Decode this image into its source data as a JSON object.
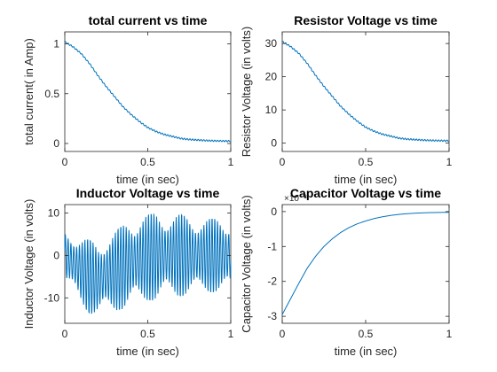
{
  "chart_data": [
    {
      "type": "line",
      "title": "total current vs time",
      "xlabel": "time (in sec)",
      "ylabel": "total current( in Amp)",
      "xlim": [
        0,
        1
      ],
      "ylim": [
        -0.08,
        1.12
      ],
      "xticks": [
        0,
        0.5,
        1
      ],
      "xtick_labels": [
        "0",
        "0.5",
        "1"
      ],
      "yticks": [
        0,
        0.5,
        1
      ],
      "ytick_labels": [
        "0",
        "0.5",
        "1"
      ],
      "grid": false,
      "color": "#0072bd",
      "series": [
        {
          "x": [
            0,
            0.05,
            0.1,
            0.15,
            0.2,
            0.25,
            0.3,
            0.35,
            0.4,
            0.45,
            0.5,
            0.55,
            0.6,
            0.65,
            0.7,
            0.75,
            0.8,
            0.85,
            0.9,
            0.95,
            1
          ],
          "y": [
            1.02,
            0.97,
            0.9,
            0.8,
            0.68,
            0.57,
            0.47,
            0.37,
            0.29,
            0.22,
            0.16,
            0.12,
            0.09,
            0.07,
            0.05,
            0.04,
            0.035,
            0.03,
            0.027,
            0.025,
            0.024
          ]
        }
      ]
    },
    {
      "type": "line",
      "title": "Resistor Voltage vs time",
      "xlabel": "time (in sec)",
      "ylabel": "Resistor Voltage (in volts)",
      "xlim": [
        0,
        1
      ],
      "ylim": [
        -2.5,
        33.5
      ],
      "xticks": [
        0,
        0.5,
        1
      ],
      "xtick_labels": [
        "0",
        "0.5",
        "1"
      ],
      "yticks": [
        0,
        10,
        20,
        30
      ],
      "ytick_labels": [
        "0",
        "10",
        "20",
        "30"
      ],
      "grid": false,
      "color": "#0072bd",
      "series": [
        {
          "x": [
            0,
            0.05,
            0.1,
            0.15,
            0.2,
            0.25,
            0.3,
            0.35,
            0.4,
            0.45,
            0.5,
            0.55,
            0.6,
            0.65,
            0.7,
            0.75,
            0.8,
            0.85,
            0.9,
            0.95,
            1
          ],
          "y": [
            30.6,
            29.1,
            27,
            24,
            20.4,
            17.1,
            14.1,
            11.1,
            8.7,
            6.6,
            4.8,
            3.6,
            2.7,
            2.1,
            1.5,
            1.2,
            1.05,
            0.9,
            0.81,
            0.75,
            0.72
          ]
        }
      ]
    },
    {
      "type": "line",
      "title": "Inductor Voltage vs time",
      "xlabel": "time (in sec)",
      "ylabel": "Inductor Voltage (in volts)",
      "xlim": [
        0,
        1
      ],
      "ylim": [
        -16,
        12
      ],
      "xticks": [
        0,
        0.5,
        1
      ],
      "xtick_labels": [
        "0",
        "0.5",
        "1"
      ],
      "yticks": [
        -10,
        0,
        10
      ],
      "ytick_labels": [
        "-10",
        "0",
        "10"
      ],
      "grid": false,
      "color": "#0072bd",
      "oscillation_cycles": 60,
      "series": [
        {
          "x": [
            0,
            0.05,
            0.1,
            0.15,
            0.2,
            0.25,
            0.3,
            0.35,
            0.4,
            0.45,
            0.5,
            0.55,
            0.6,
            0.65,
            0.7,
            0.75,
            0.8,
            0.85,
            0.9,
            0.95,
            1
          ],
          "y_upper": [
            6,
            5.5,
            4.5,
            4,
            3,
            5,
            6,
            7.5,
            9,
            10,
            10,
            10.5,
            10.5,
            10,
            10,
            9.5,
            9.5,
            9,
            9,
            9,
            9
          ],
          "y_lower": [
            -6,
            -9,
            -12,
            -14,
            -14.5,
            -14,
            -13.5,
            -13,
            -12,
            -12,
            -11,
            -11,
            -10.5,
            -10,
            -10,
            -9.5,
            -9.5,
            -9,
            -9,
            -9,
            -9
          ]
        }
      ]
    },
    {
      "type": "line",
      "title": "Capacitor Voltage vs time",
      "xlabel": "time (in sec)",
      "ylabel": "Capacitor Voltage (in volts)",
      "exponent_label": "×10⁻³",
      "xlim": [
        0,
        1
      ],
      "ylim": [
        -3.2,
        0.2
      ],
      "xticks": [
        0,
        0.5,
        1
      ],
      "xtick_labels": [
        "0",
        "0.5",
        "1"
      ],
      "yticks": [
        -3,
        -2,
        -1,
        0
      ],
      "ytick_labels": [
        "-3",
        "-2",
        "-1",
        "0"
      ],
      "grid": false,
      "color": "#0072bd",
      "series": [
        {
          "x": [
            0,
            0.05,
            0.1,
            0.15,
            0.2,
            0.25,
            0.3,
            0.35,
            0.4,
            0.45,
            0.5,
            0.55,
            0.6,
            0.65,
            0.7,
            0.75,
            0.8,
            0.85,
            0.9,
            0.95,
            1
          ],
          "y": [
            -2.95,
            -2.5,
            -2.05,
            -1.62,
            -1.28,
            -1.0,
            -0.78,
            -0.6,
            -0.46,
            -0.35,
            -0.27,
            -0.2,
            -0.15,
            -0.11,
            -0.08,
            -0.06,
            -0.045,
            -0.035,
            -0.028,
            -0.024,
            -0.02
          ]
        }
      ]
    }
  ]
}
